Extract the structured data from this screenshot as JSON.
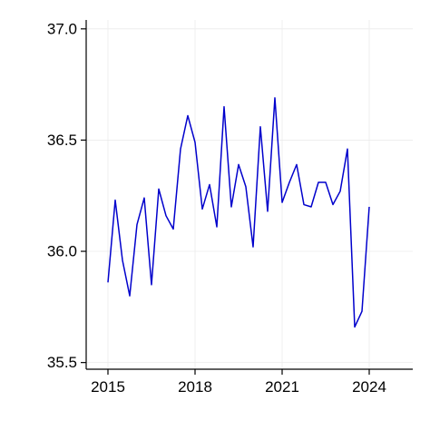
{
  "chart_data": {
    "type": "line",
    "title": "",
    "xlabel": "",
    "ylabel": "",
    "xlim": [
      2014.25,
      2025.5
    ],
    "ylim": [
      35.47,
      37.04
    ],
    "xticks": [
      2015,
      2018,
      2021,
      2024
    ],
    "xtick_labels": [
      "2015",
      "2018",
      "2021",
      "2024"
    ],
    "yticks": [
      35.5,
      36.0,
      36.5,
      37.0
    ],
    "ytick_labels": [
      "35.5",
      "36.0",
      "36.5",
      "37.0"
    ],
    "grid": true,
    "legend": "none",
    "series": [
      {
        "color": "#0000cc",
        "x": [
          2015.0,
          2015.25,
          2015.5,
          2015.75,
          2016.0,
          2016.25,
          2016.5,
          2016.75,
          2017.0,
          2017.25,
          2017.5,
          2017.75,
          2018.0,
          2018.25,
          2018.5,
          2018.75,
          2019.0,
          2019.25,
          2019.5,
          2019.75,
          2020.0,
          2020.25,
          2020.5,
          2020.75,
          2021.0,
          2021.25,
          2021.5,
          2021.75,
          2022.0,
          2022.25,
          2022.5,
          2022.75,
          2023.0,
          2023.25,
          2023.5,
          2023.75,
          2024.0
        ],
        "values": [
          35.86,
          36.23,
          35.96,
          35.8,
          36.12,
          36.24,
          35.85,
          36.28,
          36.16,
          36.1,
          36.46,
          36.61,
          36.49,
          36.19,
          36.3,
          36.11,
          36.65,
          36.2,
          36.39,
          36.29,
          36.02,
          36.56,
          36.18,
          36.69,
          36.22,
          36.31,
          36.39,
          36.21,
          36.2,
          36.31,
          36.31,
          36.21,
          36.27,
          36.46,
          35.66,
          35.73,
          36.2
        ]
      }
    ]
  }
}
